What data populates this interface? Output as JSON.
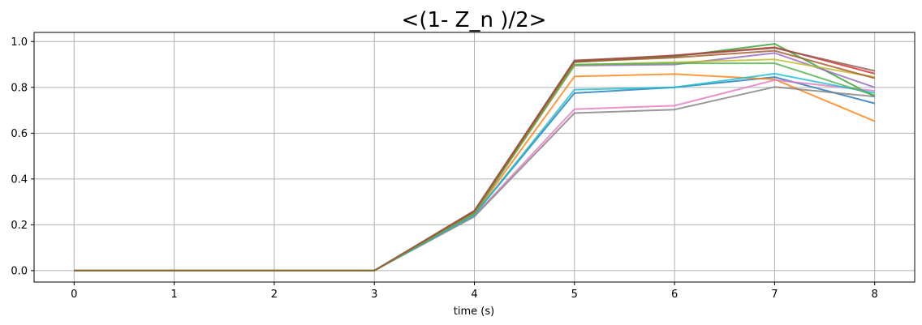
{
  "chart_data": {
    "type": "line",
    "title": "<(1-  Z_n )/2>",
    "xlabel": "time (s)",
    "ylabel": "",
    "xlim": [
      -0.4,
      8.4
    ],
    "ylim": [
      -0.05,
      1.04
    ],
    "xticks": [
      0,
      1,
      2,
      3,
      4,
      5,
      6,
      7,
      8
    ],
    "yticks": [
      0.0,
      0.2,
      0.4,
      0.6,
      0.8,
      1.0
    ],
    "ytick_labels": [
      "0.0",
      "0.2",
      "0.4",
      "0.6",
      "0.8",
      "1.0"
    ],
    "grid": true,
    "legend": "none",
    "x": [
      0,
      1,
      2,
      3,
      4,
      5,
      6,
      7,
      8
    ],
    "series": [
      {
        "color": "#1f77b4",
        "values": [
          0,
          0,
          0,
          0,
          0.245,
          0.775,
          0.8,
          0.845,
          0.73
        ]
      },
      {
        "color": "#ff7f0e",
        "values": [
          0,
          0,
          0,
          0,
          0.248,
          0.848,
          0.858,
          0.835,
          0.652
        ]
      },
      {
        "color": "#2ca02c",
        "values": [
          0,
          0,
          0,
          0,
          0.255,
          0.91,
          0.935,
          0.99,
          0.76
        ]
      },
      {
        "color": "#d62728",
        "values": [
          0,
          0,
          0,
          0,
          0.26,
          0.915,
          0.94,
          0.975,
          0.86
        ]
      },
      {
        "color": "#9467bd",
        "values": [
          0,
          0,
          0,
          0,
          0.25,
          0.895,
          0.9,
          0.95,
          0.8
        ]
      },
      {
        "color": "#8c564b",
        "values": [
          0,
          0,
          0,
          0,
          0.262,
          0.918,
          0.938,
          0.972,
          0.872
        ]
      },
      {
        "color": "#e377c2",
        "values": [
          0,
          0,
          0,
          0,
          0.24,
          0.705,
          0.72,
          0.832,
          0.785
        ]
      },
      {
        "color": "#7f7f7f",
        "values": [
          0,
          0,
          0,
          0,
          0.236,
          0.688,
          0.703,
          0.802,
          0.76
        ]
      },
      {
        "color": "#bcbd22",
        "values": [
          0,
          0,
          0,
          0,
          0.252,
          0.898,
          0.91,
          0.922,
          0.845
        ]
      },
      {
        "color": "#17becf",
        "values": [
          0,
          0,
          0,
          0,
          0.244,
          0.79,
          0.8,
          0.86,
          0.775
        ]
      },
      {
        "color": "#4daf4a",
        "values": [
          0,
          0,
          0,
          0,
          0.251,
          0.9,
          0.905,
          0.905,
          0.765
        ]
      },
      {
        "color": "#a65628",
        "values": [
          0,
          0,
          0,
          0,
          0.258,
          0.912,
          0.93,
          0.96,
          0.84
        ]
      }
    ]
  }
}
